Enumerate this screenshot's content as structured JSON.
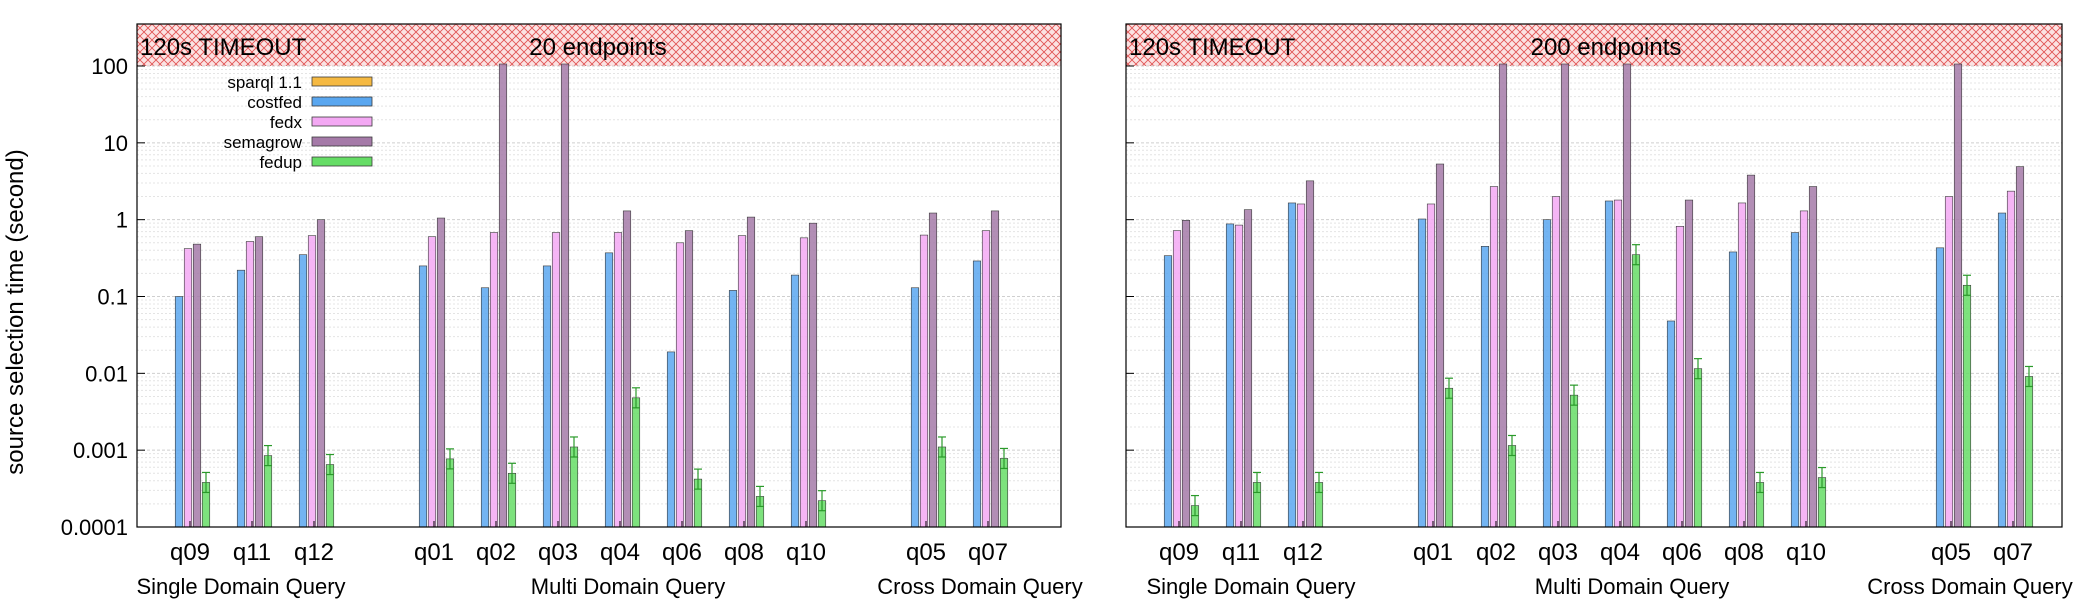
{
  "ylabel": "source selection time (second)",
  "timeout_label": "120s TIMEOUT",
  "group_labels": [
    "Single Domain Query",
    "Multi Domain Query",
    "Cross Domain Query"
  ],
  "y_ticks": [
    {
      "value": 0.0001,
      "label": "0.0001"
    },
    {
      "value": 0.001,
      "label": "0.001"
    },
    {
      "value": 0.01,
      "label": "0.01"
    },
    {
      "value": 0.1,
      "label": "0.1"
    },
    {
      "value": 1,
      "label": "1"
    },
    {
      "value": 10,
      "label": "10"
    },
    {
      "value": 100,
      "label": "100"
    }
  ],
  "colors": {
    "sparql 1.1": "#f5b942",
    "costfed": "#5aa7f0",
    "fedx": "#f3a8f3",
    "semagrow": "#a57aa8",
    "fedup": "#66dd66",
    "timeout_band": "#e05555"
  },
  "chart_data": [
    {
      "type": "bar",
      "title": "20 endpoints",
      "scale": "log",
      "ylim": [
        0.0001,
        120
      ],
      "grid": true,
      "legend_position": "top-left",
      "categories": [
        "q09",
        "q11",
        "q12",
        "q01",
        "q02",
        "q03",
        "q04",
        "q06",
        "q08",
        "q10",
        "q05",
        "q07"
      ],
      "groups": [
        {
          "name": "Single Domain Query",
          "categories": [
            "q09",
            "q11",
            "q12"
          ]
        },
        {
          "name": "Multi Domain Query",
          "categories": [
            "q01",
            "q02",
            "q03",
            "q04",
            "q06",
            "q08",
            "q10"
          ]
        },
        {
          "name": "Cross Domain Query",
          "categories": [
            "q05",
            "q07"
          ]
        }
      ],
      "series": [
        {
          "name": "sparql 1.1",
          "values": [
            null,
            null,
            null,
            null,
            null,
            null,
            null,
            null,
            null,
            null,
            null,
            null
          ]
        },
        {
          "name": "costfed",
          "values": [
            0.1,
            0.22,
            0.35,
            0.25,
            0.13,
            0.25,
            0.37,
            0.019,
            0.12,
            0.19,
            0.13,
            0.29
          ]
        },
        {
          "name": "fedx",
          "values": [
            0.42,
            0.52,
            0.62,
            0.6,
            0.68,
            0.68,
            0.68,
            0.5,
            0.62,
            0.58,
            0.63,
            0.72
          ]
        },
        {
          "name": "semagrow",
          "values": [
            0.48,
            0.6,
            1.0,
            1.05,
            120,
            120,
            1.3,
            0.72,
            1.08,
            0.9,
            1.22,
            1.3
          ]
        },
        {
          "name": "fedup",
          "values": [
            0.00038,
            0.00085,
            0.00065,
            0.00077,
            0.0005,
            0.0011,
            0.0048,
            0.00042,
            0.00025,
            0.00022,
            0.0011,
            0.00078
          ]
        }
      ]
    },
    {
      "type": "bar",
      "title": "200 endpoints",
      "scale": "log",
      "ylim": [
        0.0001,
        120
      ],
      "grid": true,
      "categories": [
        "q09",
        "q11",
        "q12",
        "q01",
        "q02",
        "q03",
        "q04",
        "q06",
        "q08",
        "q10",
        "q05",
        "q07"
      ],
      "groups": [
        {
          "name": "Single Domain Query",
          "categories": [
            "q09",
            "q11",
            "q12"
          ]
        },
        {
          "name": "Multi Domain Query",
          "categories": [
            "q01",
            "q02",
            "q03",
            "q04",
            "q06",
            "q08",
            "q10"
          ]
        },
        {
          "name": "Cross Domain Query",
          "categories": [
            "q05",
            "q07"
          ]
        }
      ],
      "series": [
        {
          "name": "sparql 1.1",
          "values": [
            null,
            null,
            null,
            null,
            null,
            null,
            null,
            null,
            null,
            null,
            null,
            null
          ]
        },
        {
          "name": "costfed",
          "values": [
            0.34,
            0.88,
            1.65,
            1.02,
            0.45,
            1.0,
            1.75,
            0.048,
            0.38,
            0.68,
            0.43,
            1.22
          ]
        },
        {
          "name": "fedx",
          "values": [
            0.72,
            0.85,
            1.6,
            1.6,
            2.7,
            2.0,
            1.8,
            0.82,
            1.65,
            1.3,
            2.0,
            2.35
          ]
        },
        {
          "name": "semagrow",
          "values": [
            0.98,
            1.35,
            3.2,
            5.3,
            120,
            120,
            120,
            1.8,
            3.8,
            2.7,
            120,
            4.9
          ]
        },
        {
          "name": "fedup",
          "values": [
            0.00019,
            0.00038,
            0.00038,
            0.0064,
            0.00115,
            0.0052,
            0.35,
            0.0115,
            0.00038,
            0.00044,
            0.14,
            0.0091
          ]
        }
      ]
    }
  ]
}
